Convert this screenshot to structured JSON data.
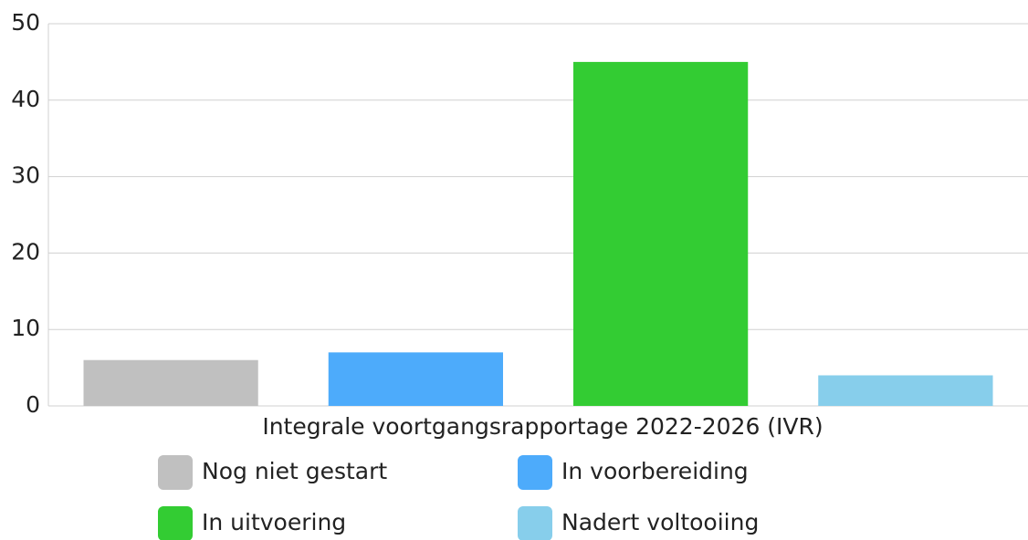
{
  "chart_data": {
    "type": "bar",
    "categories": [
      "Integrale voortgangsrapportage 2022-2026 (IVR)"
    ],
    "series": [
      {
        "name": "Nog niet gestart",
        "color": "#c0c0c0",
        "values": [
          6
        ]
      },
      {
        "name": "In voorbereiding",
        "color": "#4dabfb",
        "values": [
          7
        ]
      },
      {
        "name": "In uitvoering",
        "color": "#33cc33",
        "values": [
          45
        ]
      },
      {
        "name": "Nadert voltooiing",
        "color": "#87ceeb",
        "values": [
          4
        ]
      }
    ],
    "ylim": [
      0,
      50
    ],
    "yticks": [
      0,
      10,
      20,
      30,
      40,
      50
    ],
    "grid": true,
    "legend": "bottom"
  }
}
